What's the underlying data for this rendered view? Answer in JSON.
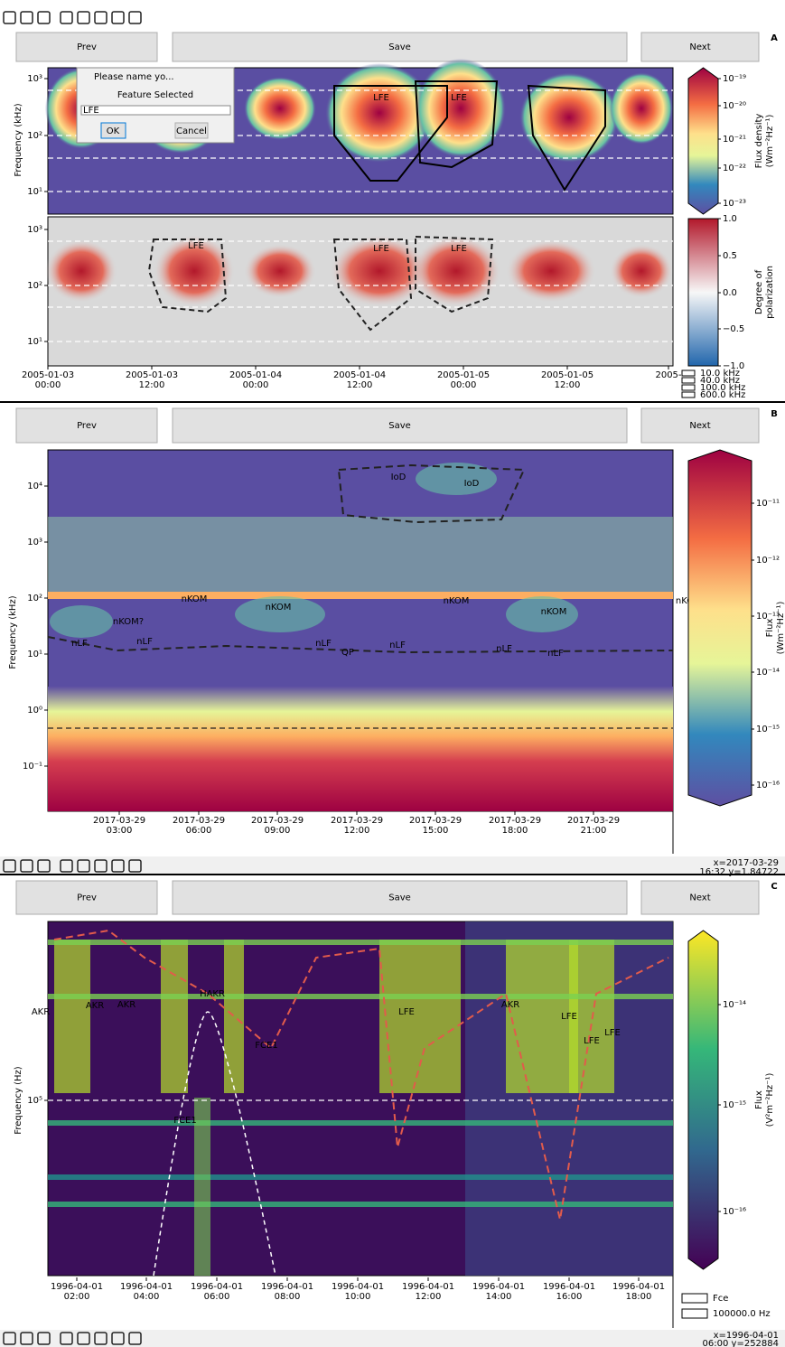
{
  "panels": [
    {
      "label": "A",
      "buttons": {
        "prev": "Prev",
        "save": "Save",
        "next": "Next"
      },
      "dialog": {
        "title": "Please name yo...",
        "text": "Feature Selected",
        "input": "LFE",
        "ok": "OK",
        "cancel": "Cancel"
      },
      "y_label": "Frequency (kHz)",
      "top_yticks": [
        "10³",
        "10²",
        "10¹"
      ],
      "bottom_yticks": [
        "10³",
        "10²",
        "10¹"
      ],
      "top_features": [
        "LFE",
        "LFE"
      ],
      "bottom_features": [
        "LFE",
        "LFE",
        "LFE"
      ],
      "colorbar1_label": [
        "Flux density",
        "(Wm⁻²Hz⁻¹)"
      ],
      "colorbar1_ticks": [
        "10⁻¹⁹",
        "10⁻²⁰",
        "10⁻²¹",
        "10⁻²²",
        "10⁻²³"
      ],
      "colorbar2_label": [
        "Degree of",
        "polarization"
      ],
      "colorbar2_ticks": [
        "1.0",
        "0.5",
        "0.0",
        "−0.5",
        "−1.0"
      ],
      "xticks": [
        [
          "2005-01-03",
          "00:00"
        ],
        [
          "2005-01-03",
          "12:00"
        ],
        [
          "2005-01-04",
          "00:00"
        ],
        [
          "2005-01-04",
          "12:00"
        ],
        [
          "2005-01-05",
          "00:00"
        ],
        [
          "2005-01-05",
          "12:00"
        ],
        [
          "2005-"
        ]
      ],
      "legend": [
        "10.0 kHz",
        "40.0 kHz",
        "100.0 kHz",
        "600.0 kHz"
      ]
    },
    {
      "label": "B",
      "buttons": {
        "prev": "Prev",
        "save": "Save",
        "next": "Next"
      },
      "y_label": "Frequency (kHz)",
      "yticks": [
        "10⁴",
        "10³",
        "10²",
        "10¹",
        "10⁰",
        "10⁻¹"
      ],
      "features": [
        "IoD",
        "IoD",
        "nKOM",
        "nKOM",
        "nKOM?",
        "nKOM",
        "nKOM",
        "nKOM?",
        "nLF",
        "nLF",
        "nLF",
        "QP",
        "nLF",
        "nLF",
        "nLF"
      ],
      "colorbar_label": [
        "Flux",
        "(Wm⁻²Hz⁻¹)"
      ],
      "colorbar_ticks": [
        "10⁻¹¹",
        "10⁻¹²",
        "10⁻¹³",
        "10⁻¹⁴",
        "10⁻¹⁵",
        "10⁻¹⁶"
      ],
      "xticks": [
        [
          "2017-03-29",
          "03:00"
        ],
        [
          "2017-03-29",
          "06:00"
        ],
        [
          "2017-03-29",
          "09:00"
        ],
        [
          "2017-03-29",
          "12:00"
        ],
        [
          "2017-03-29",
          "15:00"
        ],
        [
          "2017-03-29",
          "18:00"
        ],
        [
          "2017-03-29",
          "21:00"
        ]
      ],
      "coords": [
        "x=2017-03-29",
        "16:32 y=1.84722"
      ]
    },
    {
      "label": "C",
      "buttons": {
        "prev": "Prev",
        "save": "Save",
        "next": "Next"
      },
      "y_label": "Frequency (Hz)",
      "yticks": [
        "10⁵"
      ],
      "features": [
        "AKR",
        "AKR",
        "AKR",
        "HAKR",
        "FCE1",
        "FCE1",
        "LFE",
        "AKR",
        "LFE",
        "LFE",
        "LFE"
      ],
      "colorbar_label": [
        "Flux",
        "(V²m⁻²Hz⁻¹)"
      ],
      "colorbar_ticks": [
        "10⁻¹⁴",
        "10⁻¹⁵",
        "10⁻¹⁶"
      ],
      "xticks": [
        [
          "1996-04-01",
          "02:00"
        ],
        [
          "1996-04-01",
          "04:00"
        ],
        [
          "1996-04-01",
          "06:00"
        ],
        [
          "1996-04-01",
          "08:00"
        ],
        [
          "1996-04-01",
          "10:00"
        ],
        [
          "1996-04-01",
          "12:00"
        ],
        [
          "1996-04-01",
          "14:00"
        ],
        [
          "1996-04-01",
          "16:00"
        ],
        [
          "1996-04-01",
          "18:00"
        ]
      ],
      "legend": [
        "Fce",
        "100000.0 Hz"
      ],
      "coords": [
        "x=1996-04-01",
        "06:00 y=252884"
      ]
    }
  ]
}
